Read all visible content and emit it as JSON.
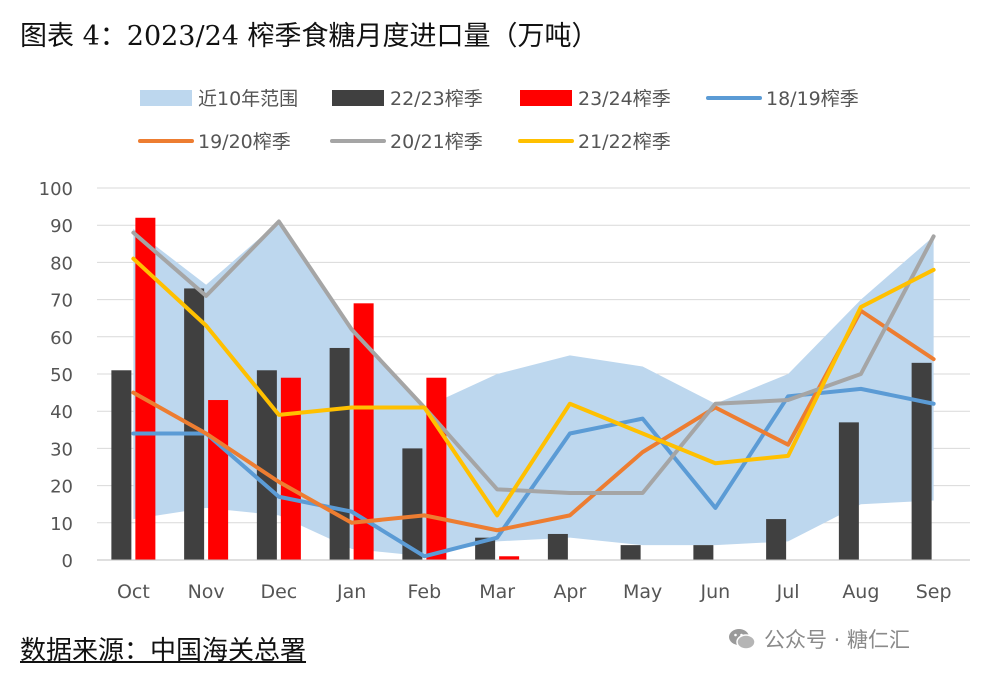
{
  "title": "图表 4：2023/24 榨季食糖月度进口量（万吨）",
  "source": "数据来源：中国海关总署",
  "watermark": {
    "icon": "wechat-icon",
    "text": "公众号 · 糖仁汇"
  },
  "colors": {
    "range": "#BDD7EE",
    "s2223": "#404040",
    "s2324": "#FF0000",
    "s1819": "#5B9BD5",
    "s1920": "#ED7D31",
    "s2021": "#A5A5A5",
    "s2122": "#FFC000",
    "grid": "#D9D9D9"
  },
  "chart_data": {
    "type": "bar",
    "categories": [
      "Oct",
      "Nov",
      "Dec",
      "Jan",
      "Feb",
      "Mar",
      "Apr",
      "May",
      "Jun",
      "Jul",
      "Aug",
      "Sep"
    ],
    "ylim": [
      0,
      100
    ],
    "yticks": [
      0,
      10,
      20,
      30,
      40,
      50,
      60,
      70,
      80,
      90,
      100
    ],
    "grid": true,
    "legend_position": "top",
    "range_band": {
      "name": "近10年范围",
      "low": [
        11,
        14,
        12,
        3,
        1,
        5,
        6,
        4,
        4,
        5,
        15,
        16
      ],
      "high": [
        89,
        74,
        91,
        62,
        41,
        50,
        55,
        52,
        42,
        50,
        70,
        87
      ]
    },
    "bar_series": [
      {
        "name": "22/23榨季",
        "values": [
          51,
          73,
          51,
          57,
          30,
          6,
          7,
          4,
          4,
          11,
          37,
          53
        ]
      },
      {
        "name": "23/24榨季",
        "values": [
          92,
          43,
          49,
          69,
          49,
          1,
          null,
          null,
          null,
          null,
          null,
          null
        ]
      }
    ],
    "line_series": [
      {
        "name": "18/19榨季",
        "values": [
          34,
          34,
          17,
          13,
          1,
          6,
          34,
          38,
          14,
          44,
          46,
          42
        ]
      },
      {
        "name": "19/20榨季",
        "values": [
          45,
          34,
          21,
          10,
          12,
          8,
          12,
          29,
          41,
          31,
          67,
          54
        ]
      },
      {
        "name": "20/21榨季",
        "values": [
          88,
          71,
          91,
          62,
          41,
          19,
          18,
          18,
          42,
          43,
          50,
          87
        ]
      },
      {
        "name": "21/22榨季",
        "values": [
          81,
          63,
          39,
          41,
          41,
          12,
          42,
          34,
          26,
          28,
          68,
          78
        ]
      }
    ]
  }
}
